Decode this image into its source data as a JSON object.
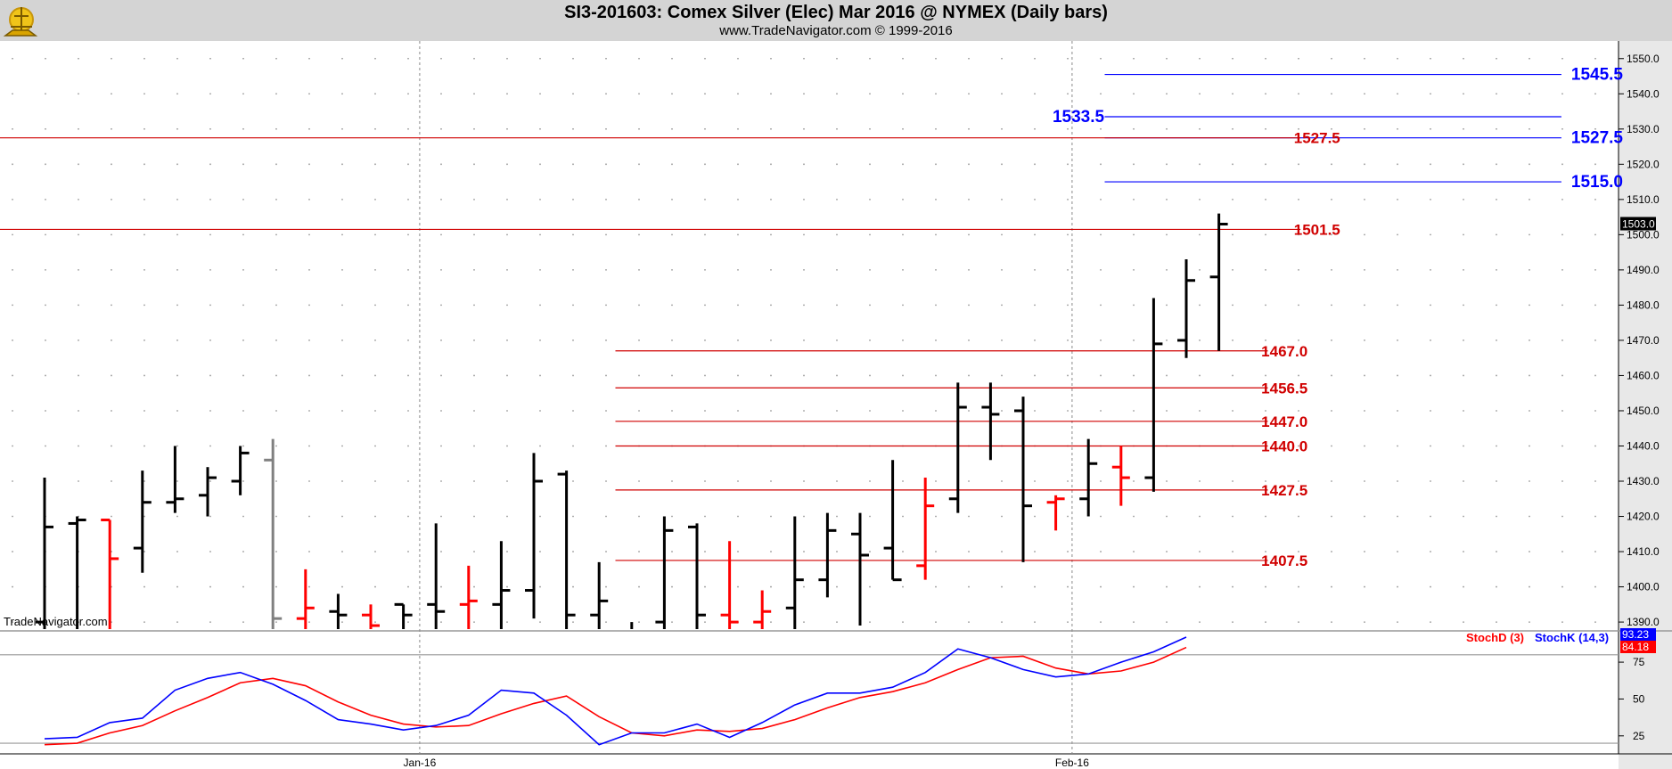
{
  "header": {
    "title": "SI3-201603:  Comex Silver (Elec) Mar 2016 @ NYMEX  (Daily bars)",
    "subtitle": "www.TradeNavigator.com © 1999-2016",
    "watermark": "TradeNavigator.com"
  },
  "colors": {
    "up": "#000000",
    "down": "#ff0000",
    "neutral": "#808080",
    "red_line": "#d00000",
    "blue_line": "#0000ff",
    "stochK": "#0000ff",
    "stochD": "#ff0000"
  },
  "chart_data": [
    {
      "type": "bar",
      "subtype": "ohlc",
      "ylim": [
        1388,
        1555
      ],
      "yticks": [
        "1390.0",
        "1400.0",
        "1410.0",
        "1420.0",
        "1430.0",
        "1440.0",
        "1450.0",
        "1460.0",
        "1470.0",
        "1480.0",
        "1490.0",
        "1500.0",
        "1510.0",
        "1520.0",
        "1530.0",
        "1540.0",
        "1550.0"
      ],
      "xlabels": [
        {
          "label": "Jan-16",
          "bar": 11.5
        },
        {
          "label": "Feb-16",
          "bar": 31.5
        }
      ],
      "last_price": "1503.0",
      "bars": [
        {
          "o": 1390,
          "h": 1431,
          "l": 1385,
          "c": 1417,
          "color": "up"
        },
        {
          "o": 1418,
          "h": 1420,
          "l": 1385,
          "c": 1419,
          "color": "up"
        },
        {
          "o": 1419,
          "h": 1419,
          "l": 1385,
          "c": 1408,
          "color": "down"
        },
        {
          "o": 1411,
          "h": 1433,
          "l": 1404,
          "c": 1424,
          "color": "up"
        },
        {
          "o": 1424,
          "h": 1440,
          "l": 1421,
          "c": 1425,
          "color": "up"
        },
        {
          "o": 1426,
          "h": 1434,
          "l": 1420,
          "c": 1431,
          "color": "up"
        },
        {
          "o": 1430,
          "h": 1440,
          "l": 1426,
          "c": 1438,
          "color": "up"
        },
        {
          "o": 1436,
          "h": 1442,
          "l": 1385,
          "c": 1391,
          "color": "neutral"
        },
        {
          "o": 1391,
          "h": 1405,
          "l": 1385,
          "c": 1394,
          "color": "down"
        },
        {
          "o": 1393,
          "h": 1398,
          "l": 1385,
          "c": 1392,
          "color": "up"
        },
        {
          "o": 1392,
          "h": 1395,
          "l": 1385,
          "c": 1389,
          "color": "down"
        },
        {
          "o": 1395,
          "h": 1395,
          "l": 1385,
          "c": 1392,
          "color": "up"
        },
        {
          "o": 1395,
          "h": 1418,
          "l": 1385,
          "c": 1393,
          "color": "up"
        },
        {
          "o": 1395,
          "h": 1406,
          "l": 1385,
          "c": 1396,
          "color": "down"
        },
        {
          "o": 1395,
          "h": 1413,
          "l": 1385,
          "c": 1399,
          "color": "up"
        },
        {
          "o": 1399,
          "h": 1438,
          "l": 1391,
          "c": 1430,
          "color": "up"
        },
        {
          "o": 1432,
          "h": 1433,
          "l": 1385,
          "c": 1392,
          "color": "up"
        },
        {
          "o": 1392,
          "h": 1407,
          "l": 1385,
          "c": 1396,
          "color": "up"
        },
        {
          "o": 1388,
          "h": 1390,
          "l": 1385,
          "c": 1388,
          "color": "up"
        },
        {
          "o": 1390,
          "h": 1420,
          "l": 1385,
          "c": 1416,
          "color": "up"
        },
        {
          "o": 1417,
          "h": 1418,
          "l": 1385,
          "c": 1392,
          "color": "up"
        },
        {
          "o": 1392,
          "h": 1413,
          "l": 1385,
          "c": 1390,
          "color": "down"
        },
        {
          "o": 1390,
          "h": 1399,
          "l": 1385,
          "c": 1393,
          "color": "down"
        },
        {
          "o": 1394,
          "h": 1420,
          "l": 1387,
          "c": 1402,
          "color": "up"
        },
        {
          "o": 1402,
          "h": 1421,
          "l": 1397,
          "c": 1416,
          "color": "up"
        },
        {
          "o": 1415,
          "h": 1421,
          "l": 1389,
          "c": 1409,
          "color": "up"
        },
        {
          "o": 1411,
          "h": 1436,
          "l": 1402,
          "c": 1402,
          "color": "up"
        },
        {
          "o": 1406,
          "h": 1431,
          "l": 1402,
          "c": 1423,
          "color": "down"
        },
        {
          "o": 1425,
          "h": 1458,
          "l": 1421,
          "c": 1451,
          "color": "up"
        },
        {
          "o": 1451,
          "h": 1458,
          "l": 1436,
          "c": 1449,
          "color": "up"
        },
        {
          "o": 1450,
          "h": 1454,
          "l": 1407,
          "c": 1423,
          "color": "up"
        },
        {
          "o": 1424,
          "h": 1426,
          "l": 1416,
          "c": 1425,
          "color": "down"
        },
        {
          "o": 1425,
          "h": 1442,
          "l": 1420,
          "c": 1435,
          "color": "up"
        },
        {
          "o": 1434,
          "h": 1440,
          "l": 1423,
          "c": 1431,
          "color": "down"
        },
        {
          "o": 1431,
          "h": 1482,
          "l": 1427,
          "c": 1469,
          "color": "up"
        },
        {
          "o": 1470,
          "h": 1493,
          "l": 1465,
          "c": 1487,
          "color": "up"
        },
        {
          "o": 1488,
          "h": 1506,
          "l": 1467,
          "c": 1503,
          "color": "up"
        }
      ],
      "levels": [
        {
          "value": 1545.5,
          "label": "1545.5",
          "color": "blue",
          "from": 32.5,
          "to": 46.5,
          "label_bar": 46.8
        },
        {
          "value": 1533.5,
          "label": "1533.5",
          "color": "blue",
          "from": 32.5,
          "to": 46.5,
          "label_bar": 30.9
        },
        {
          "value": 1527.5,
          "label": "1527.5",
          "color": "blue",
          "from": 32.5,
          "to": 46.5,
          "label_bar": 46.8
        },
        {
          "value": 1527.5,
          "label": "1527.5",
          "color": "red",
          "from": -1.5,
          "to": 38.5,
          "label_bar": 38.3
        },
        {
          "value": 1515.0,
          "label": "1515.0",
          "color": "blue",
          "from": 32.5,
          "to": 46.5,
          "label_bar": 46.8
        },
        {
          "value": 1501.5,
          "label": "1501.5",
          "color": "red",
          "from": -1.5,
          "to": 38.5,
          "label_bar": 38.3
        },
        {
          "value": 1467.0,
          "label": "1467.0",
          "color": "red",
          "from": 17.5,
          "to": 37.5,
          "label_bar": 37.3
        },
        {
          "value": 1456.5,
          "label": "1456.5",
          "color": "red",
          "from": 17.5,
          "to": 37.5,
          "label_bar": 37.3
        },
        {
          "value": 1447.0,
          "label": "1447.0",
          "color": "red",
          "from": 17.5,
          "to": 37.5,
          "label_bar": 37.3
        },
        {
          "value": 1440.0,
          "label": "1440.0",
          "color": "red",
          "from": 17.5,
          "to": 37.5,
          "label_bar": 37.3
        },
        {
          "value": 1427.5,
          "label": "1427.5",
          "color": "red",
          "from": 17.5,
          "to": 37.5,
          "label_bar": 37.3
        },
        {
          "value": 1407.5,
          "label": "1407.5",
          "color": "red",
          "from": 17.5,
          "to": 37.5,
          "label_bar": 37.3
        }
      ]
    },
    {
      "type": "line",
      "ylim": [
        14,
        95
      ],
      "yticks": [
        "25",
        "50",
        "75"
      ],
      "hlines": [
        80,
        20
      ],
      "series": [
        {
          "name": "StochD (3)",
          "color": "red",
          "last_label": "84.18",
          "values": [
            19,
            20,
            27,
            32,
            42,
            51,
            61,
            64,
            59,
            48,
            39,
            33,
            31,
            32,
            40,
            47,
            52,
            38,
            27,
            25,
            29,
            28,
            30,
            36,
            44,
            51,
            55,
            61,
            70,
            78,
            79,
            71,
            67,
            69,
            75,
            85
          ]
        },
        {
          "name": "StochK (14,3)",
          "color": "blue",
          "last_label": "93.23",
          "values": [
            23,
            24,
            34,
            37,
            56,
            64,
            68,
            60,
            49,
            36,
            33,
            29,
            32,
            39,
            56,
            54,
            39,
            19,
            27,
            27,
            33,
            24,
            34,
            46,
            54,
            54,
            58,
            68,
            84,
            78,
            70,
            65,
            67,
            75,
            82,
            92
          ]
        }
      ]
    }
  ]
}
